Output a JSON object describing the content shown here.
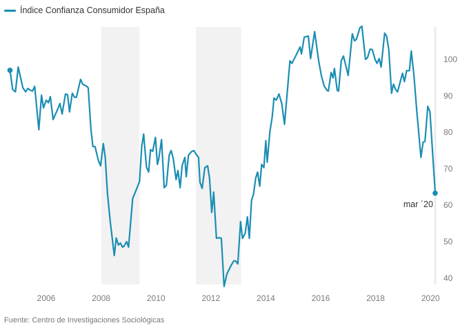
{
  "legend": {
    "label": "Índice Confianza Consumidor España",
    "color": "#1a8db3"
  },
  "source": "Fuente: Centro de Investigaciones Sociológicas",
  "chart_data": {
    "type": "line",
    "title": "",
    "xlabel": "",
    "ylabel": "",
    "xlim": [
      2004.6,
      2020.35
    ],
    "ylim": [
      37,
      109
    ],
    "x_ticks": [
      2006,
      2008,
      2010,
      2012,
      2014,
      2016,
      2018,
      2020
    ],
    "x_tick_labels": [
      "2006",
      "2008",
      "2010",
      "2012",
      "2014",
      "2016",
      "2018",
      "2020"
    ],
    "y_ticks": [
      40,
      50,
      60,
      70,
      80,
      90,
      100
    ],
    "y_tick_labels": [
      "40",
      "50",
      "60",
      "70",
      "80",
      "90",
      "100"
    ],
    "y_axis_side": "right",
    "grid": false,
    "legend_position": "top-left",
    "line_color": "#1a8db3",
    "shaded_periods": [
      {
        "start": 2008.0,
        "end": 2009.4
      },
      {
        "start": 2011.45,
        "end": 2013.1
      }
    ],
    "shade_color": "#f2f2f2",
    "annotation": {
      "label": "mar ´20",
      "x": 2020.17,
      "y": 63.3
    },
    "series": [
      {
        "name": "Índice Confianza Consumidor España",
        "points": [
          [
            2004.68,
            97.0
          ],
          [
            2004.78,
            91.7
          ],
          [
            2004.88,
            91.1
          ],
          [
            2004.98,
            97.9
          ],
          [
            2005.15,
            92.2
          ],
          [
            2005.25,
            91.1
          ],
          [
            2005.33,
            92.0
          ],
          [
            2005.43,
            91.5
          ],
          [
            2005.5,
            91.3
          ],
          [
            2005.58,
            92.6
          ],
          [
            2005.73,
            80.7
          ],
          [
            2005.83,
            90.2
          ],
          [
            2005.9,
            86.7
          ],
          [
            2006.0,
            88.8
          ],
          [
            2006.08,
            88.1
          ],
          [
            2006.15,
            89.8
          ],
          [
            2006.25,
            83.5
          ],
          [
            2006.4,
            86.0
          ],
          [
            2006.5,
            87.9
          ],
          [
            2006.58,
            85.0
          ],
          [
            2006.7,
            90.5
          ],
          [
            2006.78,
            90.3
          ],
          [
            2006.85,
            85.6
          ],
          [
            2006.95,
            90.7
          ],
          [
            2007.03,
            89.6
          ],
          [
            2007.1,
            89.6
          ],
          [
            2007.25,
            94.5
          ],
          [
            2007.33,
            93.2
          ],
          [
            2007.48,
            92.6
          ],
          [
            2007.53,
            92.2
          ],
          [
            2007.63,
            80.7
          ],
          [
            2007.7,
            76.1
          ],
          [
            2007.78,
            76.1
          ],
          [
            2007.9,
            72.3
          ],
          [
            2007.98,
            70.8
          ],
          [
            2008.08,
            76.9
          ],
          [
            2008.15,
            73.1
          ],
          [
            2008.23,
            63.3
          ],
          [
            2008.33,
            55.7
          ],
          [
            2008.48,
            46.2
          ],
          [
            2008.55,
            51.0
          ],
          [
            2008.63,
            49.1
          ],
          [
            2008.7,
            49.6
          ],
          [
            2008.78,
            48.5
          ],
          [
            2008.83,
            48.7
          ],
          [
            2008.93,
            50.0
          ],
          [
            2009.0,
            48.5
          ],
          [
            2009.15,
            61.9
          ],
          [
            2009.23,
            63.3
          ],
          [
            2009.4,
            66.5
          ],
          [
            2009.48,
            76.1
          ],
          [
            2009.55,
            79.5
          ],
          [
            2009.65,
            70.5
          ],
          [
            2009.73,
            69.1
          ],
          [
            2009.8,
            75.2
          ],
          [
            2009.88,
            74.8
          ],
          [
            2009.98,
            78.6
          ],
          [
            2010.05,
            71.2
          ],
          [
            2010.1,
            72.7
          ],
          [
            2010.2,
            78.0
          ],
          [
            2010.3,
            64.8
          ],
          [
            2010.38,
            65.5
          ],
          [
            2010.48,
            73.7
          ],
          [
            2010.55,
            75.0
          ],
          [
            2010.63,
            72.7
          ],
          [
            2010.73,
            67.0
          ],
          [
            2010.8,
            69.5
          ],
          [
            2010.88,
            64.8
          ],
          [
            2010.95,
            70.8
          ],
          [
            2011.05,
            73.1
          ],
          [
            2011.1,
            67.8
          ],
          [
            2011.18,
            73.7
          ],
          [
            2011.28,
            74.6
          ],
          [
            2011.38,
            75.0
          ],
          [
            2011.45,
            74.1
          ],
          [
            2011.55,
            73.1
          ],
          [
            2011.6,
            66.3
          ],
          [
            2011.68,
            64.6
          ],
          [
            2011.78,
            70.3
          ],
          [
            2011.88,
            70.8
          ],
          [
            2011.95,
            67.4
          ],
          [
            2012.03,
            58.0
          ],
          [
            2012.1,
            63.6
          ],
          [
            2012.2,
            50.9
          ],
          [
            2012.3,
            51.1
          ],
          [
            2012.38,
            50.9
          ],
          [
            2012.48,
            37.7
          ],
          [
            2012.58,
            41.1
          ],
          [
            2012.73,
            43.4
          ],
          [
            2012.83,
            44.7
          ],
          [
            2012.9,
            44.7
          ],
          [
            2012.98,
            43.9
          ],
          [
            2013.08,
            55.5
          ],
          [
            2013.15,
            50.9
          ],
          [
            2013.25,
            52.3
          ],
          [
            2013.33,
            56.8
          ],
          [
            2013.4,
            50.9
          ],
          [
            2013.48,
            61.4
          ],
          [
            2013.55,
            62.9
          ],
          [
            2013.63,
            67.4
          ],
          [
            2013.7,
            69.1
          ],
          [
            2013.78,
            65.2
          ],
          [
            2013.85,
            71.2
          ],
          [
            2013.93,
            70.3
          ],
          [
            2014.0,
            77.7
          ],
          [
            2014.05,
            71.8
          ],
          [
            2014.15,
            80.3
          ],
          [
            2014.23,
            84.1
          ],
          [
            2014.3,
            89.4
          ],
          [
            2014.38,
            88.8
          ],
          [
            2014.48,
            90.5
          ],
          [
            2014.58,
            87.9
          ],
          [
            2014.68,
            82.2
          ],
          [
            2014.88,
            99.6
          ],
          [
            2014.95,
            98.9
          ],
          [
            2015.1,
            101.1
          ],
          [
            2015.25,
            103.4
          ],
          [
            2015.3,
            101.5
          ],
          [
            2015.4,
            106.1
          ],
          [
            2015.55,
            106.4
          ],
          [
            2015.63,
            100.2
          ],
          [
            2015.78,
            107.6
          ],
          [
            2015.93,
            99.4
          ],
          [
            2016.03,
            95.3
          ],
          [
            2016.13,
            92.6
          ],
          [
            2016.23,
            91.5
          ],
          [
            2016.28,
            91.3
          ],
          [
            2016.38,
            96.4
          ],
          [
            2016.45,
            94.9
          ],
          [
            2016.5,
            97.5
          ],
          [
            2016.6,
            91.5
          ],
          [
            2016.65,
            91.3
          ],
          [
            2016.75,
            99.6
          ],
          [
            2016.83,
            100.9
          ],
          [
            2016.95,
            97.2
          ],
          [
            2017.0,
            95.6
          ],
          [
            2017.15,
            107.0
          ],
          [
            2017.23,
            105.1
          ],
          [
            2017.3,
            105.5
          ],
          [
            2017.43,
            108.7
          ],
          [
            2017.5,
            109.1
          ],
          [
            2017.63,
            100.0
          ],
          [
            2017.7,
            100.4
          ],
          [
            2017.8,
            102.8
          ],
          [
            2017.88,
            102.7
          ],
          [
            2017.98,
            100.0
          ],
          [
            2018.05,
            98.9
          ],
          [
            2018.13,
            100.2
          ],
          [
            2018.2,
            97.9
          ],
          [
            2018.33,
            107.2
          ],
          [
            2018.4,
            106.4
          ],
          [
            2018.48,
            102.7
          ],
          [
            2018.58,
            90.7
          ],
          [
            2018.65,
            93.2
          ],
          [
            2018.73,
            91.7
          ],
          [
            2018.8,
            91.1
          ],
          [
            2018.9,
            93.9
          ],
          [
            2018.98,
            96.2
          ],
          [
            2019.05,
            93.9
          ],
          [
            2019.13,
            96.9
          ],
          [
            2019.23,
            96.9
          ],
          [
            2019.3,
            102.3
          ],
          [
            2019.4,
            95.3
          ],
          [
            2019.5,
            85.8
          ],
          [
            2019.65,
            73.1
          ],
          [
            2019.73,
            77.3
          ],
          [
            2019.8,
            77.5
          ],
          [
            2019.9,
            87.1
          ],
          [
            2019.98,
            85.6
          ],
          [
            2020.17,
            63.3
          ]
        ]
      }
    ]
  }
}
